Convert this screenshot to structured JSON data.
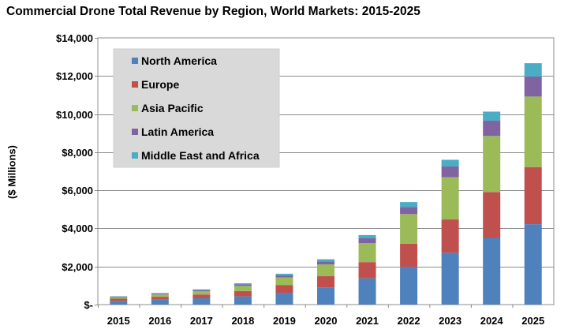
{
  "chart_data": {
    "type": "bar",
    "stacked": true,
    "title": "Commercial Drone Total Revenue by Region, World Markets: 2015-2025",
    "xlabel": "",
    "ylabel": "($ Millions)",
    "ylim": [
      0,
      14000
    ],
    "yticks": [
      0,
      2000,
      4000,
      6000,
      8000,
      10000,
      12000,
      14000
    ],
    "ytick_labels": [
      "$-",
      "$2,000",
      "$4,000",
      "$6,000",
      "$8,000",
      "$10,000",
      "$12,000",
      "$14,000"
    ],
    "grid": true,
    "legend_position": "top-left",
    "categories": [
      "2015",
      "2016",
      "2017",
      "2018",
      "2019",
      "2020",
      "2021",
      "2022",
      "2023",
      "2024",
      "2025"
    ],
    "series": [
      {
        "name": "North America",
        "color": "#4f81bd",
        "values": [
          200,
          260,
          330,
          430,
          620,
          900,
          1380,
          1980,
          2720,
          3500,
          4220
        ]
      },
      {
        "name": "Europe",
        "color": "#c0504d",
        "values": [
          110,
          150,
          200,
          280,
          410,
          590,
          850,
          1220,
          1750,
          2400,
          3000
        ]
      },
      {
        "name": "Asia Pacific",
        "color": "#9bbb59",
        "values": [
          80,
          120,
          170,
          270,
          400,
          620,
          1000,
          1550,
          2220,
          2950,
          3700
        ]
      },
      {
        "name": "Latin America",
        "color": "#8064a2",
        "values": [
          30,
          45,
          60,
          80,
          110,
          160,
          250,
          370,
          560,
          800,
          1050
        ]
      },
      {
        "name": "Middle East and Africa",
        "color": "#4bacc6",
        "values": [
          20,
          30,
          40,
          60,
          80,
          110,
          170,
          260,
          350,
          480,
          700
        ]
      }
    ]
  }
}
